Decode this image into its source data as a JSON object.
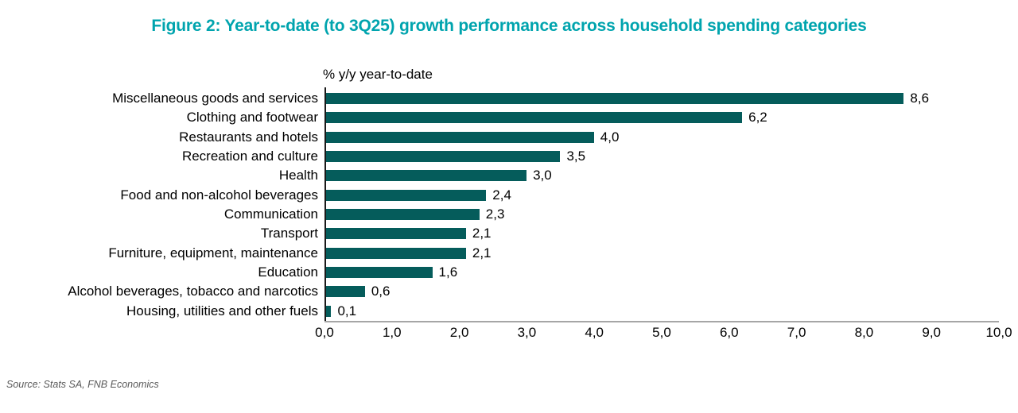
{
  "figure": {
    "title": "Figure 2: Year-to-date (to 3Q25) growth performance across household spending categories",
    "source": "Source: Stats SA, FNB Economics"
  },
  "chart_data": {
    "type": "bar",
    "orientation": "horizontal",
    "axis_title": "% y/y year-to-date",
    "categories": [
      "Miscellaneous goods and services",
      "Clothing and footwear",
      "Restaurants and hotels",
      "Recreation and culture",
      "Health",
      "Food and non-alcohol beverages",
      "Communication",
      "Transport",
      "Furniture, equipment, maintenance",
      "Education",
      "Alcohol beverages, tobacco and narcotics",
      "Housing, utilities and other fuels"
    ],
    "values": [
      8.6,
      6.2,
      4.0,
      3.5,
      3.0,
      2.4,
      2.3,
      2.1,
      2.1,
      1.6,
      0.6,
      0.1
    ],
    "value_labels": [
      "8,6",
      "6,2",
      "4,0",
      "3,5",
      "3,0",
      "2,4",
      "2,3",
      "2,1",
      "2,1",
      "1,6",
      "0,6",
      "0,1"
    ],
    "x_ticks": [
      "0,0",
      "1,0",
      "2,0",
      "3,0",
      "4,0",
      "5,0",
      "6,0",
      "7,0",
      "8,0",
      "9,0",
      "10,0"
    ],
    "xlim": [
      0,
      10
    ],
    "grid": false,
    "legend": "none",
    "colors": {
      "bar": "#055C5B",
      "title": "#00A4AE",
      "x_axis_line": "#A6A6A6",
      "y_axis_line": "#1A1A1A",
      "text": "#000000",
      "source_text": "#595959"
    }
  }
}
